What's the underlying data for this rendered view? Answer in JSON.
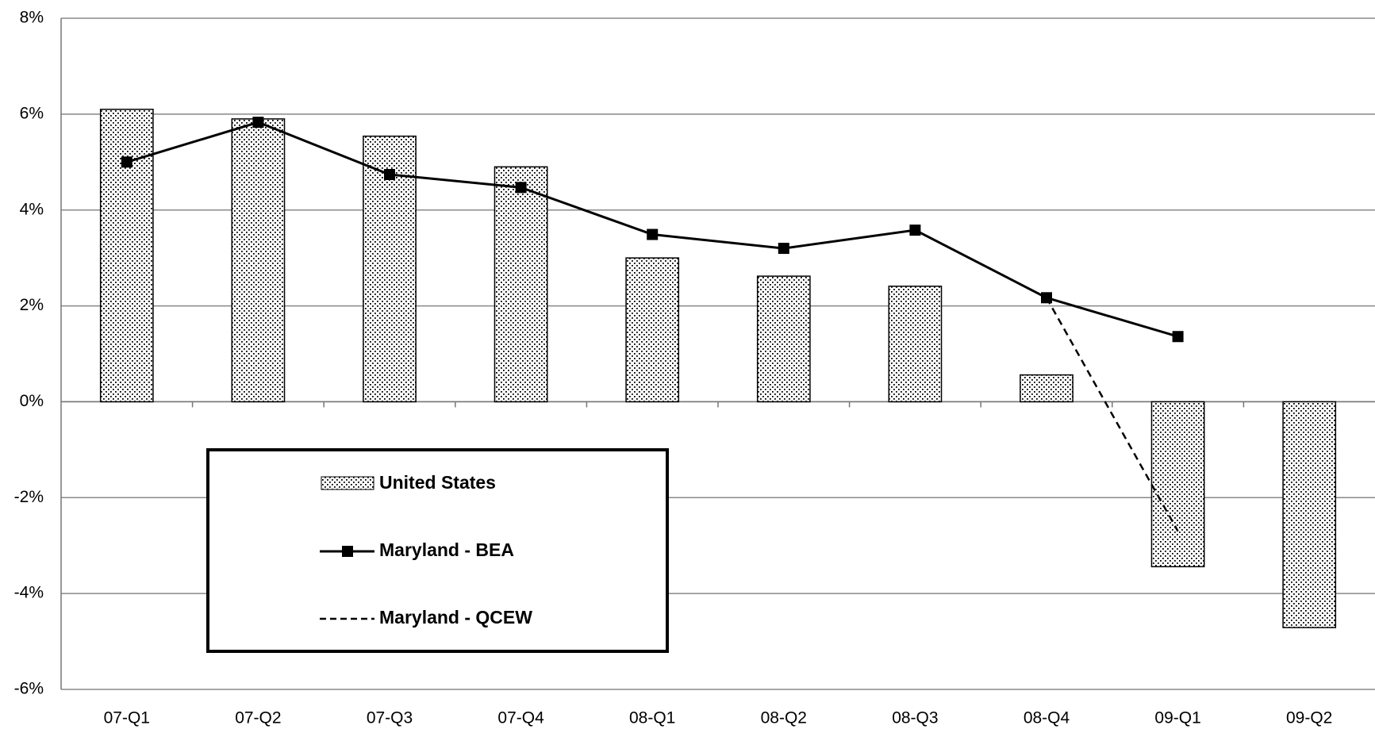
{
  "chart_data": {
    "type": "bar-line",
    "categories": [
      "07-Q1",
      "07-Q2",
      "07-Q3",
      "07-Q4",
      "08-Q1",
      "08-Q2",
      "08-Q3",
      "08-Q4",
      "09-Q1",
      "09-Q2"
    ],
    "series": [
      {
        "name": "United States",
        "type": "bar",
        "color": "#000000",
        "values": [
          6.1,
          5.9,
          5.54,
          4.9,
          3.0,
          2.62,
          2.41,
          0.56,
          -3.44,
          -4.71
        ]
      },
      {
        "name": "Maryland - BEA",
        "type": "line",
        "color": "#000000",
        "values": [
          5.0,
          5.83,
          4.74,
          4.47,
          3.49,
          3.2,
          3.58,
          2.17,
          1.36,
          null
        ]
      },
      {
        "name": "Maryland - QCEW",
        "type": "dashed-line",
        "color": "#000000",
        "values": [
          null,
          null,
          null,
          null,
          null,
          null,
          null,
          2.17,
          -2.7,
          null
        ]
      }
    ],
    "ylim": [
      -6,
      8
    ],
    "yticks": [
      {
        "value": -6,
        "label": "-6%"
      },
      {
        "value": -4,
        "label": "-4%"
      },
      {
        "value": -2,
        "label": "-2%"
      },
      {
        "value": 0,
        "label": "0%"
      },
      {
        "value": 2,
        "label": "2%"
      },
      {
        "value": 4,
        "label": "4%"
      },
      {
        "value": 6,
        "label": "6%"
      },
      {
        "value": 8,
        "label": "8%"
      }
    ],
    "grid": true
  }
}
